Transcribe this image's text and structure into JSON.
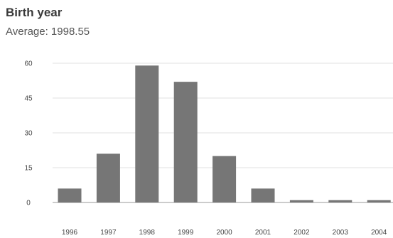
{
  "chart_data": {
    "type": "bar",
    "title": "Birth year",
    "subtitle": "Average: 1998.55",
    "categories": [
      "1996",
      "1997",
      "1998",
      "1999",
      "2000",
      "2001",
      "2002",
      "2003",
      "2004"
    ],
    "values": [
      6,
      21,
      59,
      52,
      20,
      6,
      1,
      1,
      1
    ],
    "ylim": [
      0,
      60
    ],
    "yticks": [
      "0",
      "15",
      "30",
      "45",
      "60"
    ],
    "grid": true,
    "bar_color": "#767676"
  }
}
